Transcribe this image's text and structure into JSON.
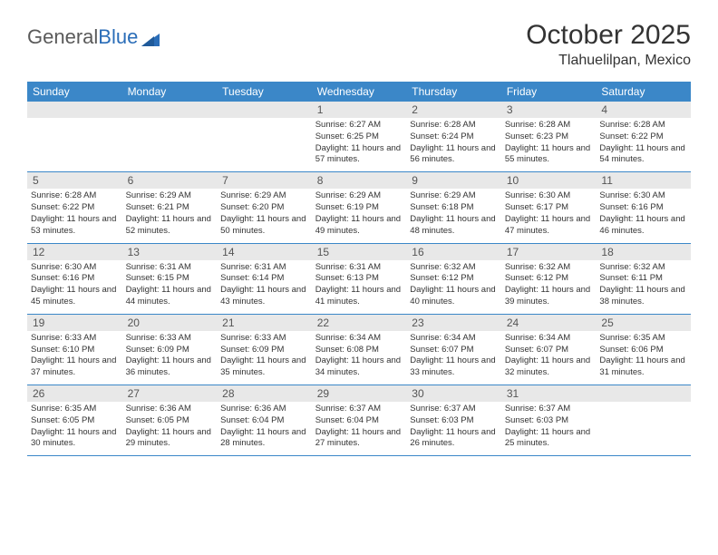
{
  "logo": {
    "text_gray": "General",
    "text_blue": "Blue"
  },
  "title": "October 2025",
  "location": "Tlahuelilpan, Mexico",
  "colors": {
    "header_bg": "#3b87c8",
    "header_text": "#ffffff",
    "daynum_bg": "#e8e8e8",
    "daynum_text": "#555555",
    "cell_text": "#333333",
    "week_border": "#3b87c8",
    "logo_gray": "#5a5a5a",
    "logo_blue": "#2a6db8",
    "page_bg": "#ffffff"
  },
  "daynames": [
    "Sunday",
    "Monday",
    "Tuesday",
    "Wednesday",
    "Thursday",
    "Friday",
    "Saturday"
  ],
  "weeks": [
    [
      {
        "n": "",
        "sr": "",
        "ss": "",
        "dl": ""
      },
      {
        "n": "",
        "sr": "",
        "ss": "",
        "dl": ""
      },
      {
        "n": "",
        "sr": "",
        "ss": "",
        "dl": ""
      },
      {
        "n": "1",
        "sr": "Sunrise: 6:27 AM",
        "ss": "Sunset: 6:25 PM",
        "dl": "Daylight: 11 hours and 57 minutes."
      },
      {
        "n": "2",
        "sr": "Sunrise: 6:28 AM",
        "ss": "Sunset: 6:24 PM",
        "dl": "Daylight: 11 hours and 56 minutes."
      },
      {
        "n": "3",
        "sr": "Sunrise: 6:28 AM",
        "ss": "Sunset: 6:23 PM",
        "dl": "Daylight: 11 hours and 55 minutes."
      },
      {
        "n": "4",
        "sr": "Sunrise: 6:28 AM",
        "ss": "Sunset: 6:22 PM",
        "dl": "Daylight: 11 hours and 54 minutes."
      }
    ],
    [
      {
        "n": "5",
        "sr": "Sunrise: 6:28 AM",
        "ss": "Sunset: 6:22 PM",
        "dl": "Daylight: 11 hours and 53 minutes."
      },
      {
        "n": "6",
        "sr": "Sunrise: 6:29 AM",
        "ss": "Sunset: 6:21 PM",
        "dl": "Daylight: 11 hours and 52 minutes."
      },
      {
        "n": "7",
        "sr": "Sunrise: 6:29 AM",
        "ss": "Sunset: 6:20 PM",
        "dl": "Daylight: 11 hours and 50 minutes."
      },
      {
        "n": "8",
        "sr": "Sunrise: 6:29 AM",
        "ss": "Sunset: 6:19 PM",
        "dl": "Daylight: 11 hours and 49 minutes."
      },
      {
        "n": "9",
        "sr": "Sunrise: 6:29 AM",
        "ss": "Sunset: 6:18 PM",
        "dl": "Daylight: 11 hours and 48 minutes."
      },
      {
        "n": "10",
        "sr": "Sunrise: 6:30 AM",
        "ss": "Sunset: 6:17 PM",
        "dl": "Daylight: 11 hours and 47 minutes."
      },
      {
        "n": "11",
        "sr": "Sunrise: 6:30 AM",
        "ss": "Sunset: 6:16 PM",
        "dl": "Daylight: 11 hours and 46 minutes."
      }
    ],
    [
      {
        "n": "12",
        "sr": "Sunrise: 6:30 AM",
        "ss": "Sunset: 6:16 PM",
        "dl": "Daylight: 11 hours and 45 minutes."
      },
      {
        "n": "13",
        "sr": "Sunrise: 6:31 AM",
        "ss": "Sunset: 6:15 PM",
        "dl": "Daylight: 11 hours and 44 minutes."
      },
      {
        "n": "14",
        "sr": "Sunrise: 6:31 AM",
        "ss": "Sunset: 6:14 PM",
        "dl": "Daylight: 11 hours and 43 minutes."
      },
      {
        "n": "15",
        "sr": "Sunrise: 6:31 AM",
        "ss": "Sunset: 6:13 PM",
        "dl": "Daylight: 11 hours and 41 minutes."
      },
      {
        "n": "16",
        "sr": "Sunrise: 6:32 AM",
        "ss": "Sunset: 6:12 PM",
        "dl": "Daylight: 11 hours and 40 minutes."
      },
      {
        "n": "17",
        "sr": "Sunrise: 6:32 AM",
        "ss": "Sunset: 6:12 PM",
        "dl": "Daylight: 11 hours and 39 minutes."
      },
      {
        "n": "18",
        "sr": "Sunrise: 6:32 AM",
        "ss": "Sunset: 6:11 PM",
        "dl": "Daylight: 11 hours and 38 minutes."
      }
    ],
    [
      {
        "n": "19",
        "sr": "Sunrise: 6:33 AM",
        "ss": "Sunset: 6:10 PM",
        "dl": "Daylight: 11 hours and 37 minutes."
      },
      {
        "n": "20",
        "sr": "Sunrise: 6:33 AM",
        "ss": "Sunset: 6:09 PM",
        "dl": "Daylight: 11 hours and 36 minutes."
      },
      {
        "n": "21",
        "sr": "Sunrise: 6:33 AM",
        "ss": "Sunset: 6:09 PM",
        "dl": "Daylight: 11 hours and 35 minutes."
      },
      {
        "n": "22",
        "sr": "Sunrise: 6:34 AM",
        "ss": "Sunset: 6:08 PM",
        "dl": "Daylight: 11 hours and 34 minutes."
      },
      {
        "n": "23",
        "sr": "Sunrise: 6:34 AM",
        "ss": "Sunset: 6:07 PM",
        "dl": "Daylight: 11 hours and 33 minutes."
      },
      {
        "n": "24",
        "sr": "Sunrise: 6:34 AM",
        "ss": "Sunset: 6:07 PM",
        "dl": "Daylight: 11 hours and 32 minutes."
      },
      {
        "n": "25",
        "sr": "Sunrise: 6:35 AM",
        "ss": "Sunset: 6:06 PM",
        "dl": "Daylight: 11 hours and 31 minutes."
      }
    ],
    [
      {
        "n": "26",
        "sr": "Sunrise: 6:35 AM",
        "ss": "Sunset: 6:05 PM",
        "dl": "Daylight: 11 hours and 30 minutes."
      },
      {
        "n": "27",
        "sr": "Sunrise: 6:36 AM",
        "ss": "Sunset: 6:05 PM",
        "dl": "Daylight: 11 hours and 29 minutes."
      },
      {
        "n": "28",
        "sr": "Sunrise: 6:36 AM",
        "ss": "Sunset: 6:04 PM",
        "dl": "Daylight: 11 hours and 28 minutes."
      },
      {
        "n": "29",
        "sr": "Sunrise: 6:37 AM",
        "ss": "Sunset: 6:04 PM",
        "dl": "Daylight: 11 hours and 27 minutes."
      },
      {
        "n": "30",
        "sr": "Sunrise: 6:37 AM",
        "ss": "Sunset: 6:03 PM",
        "dl": "Daylight: 11 hours and 26 minutes."
      },
      {
        "n": "31",
        "sr": "Sunrise: 6:37 AM",
        "ss": "Sunset: 6:03 PM",
        "dl": "Daylight: 11 hours and 25 minutes."
      },
      {
        "n": "",
        "sr": "",
        "ss": "",
        "dl": ""
      }
    ]
  ]
}
